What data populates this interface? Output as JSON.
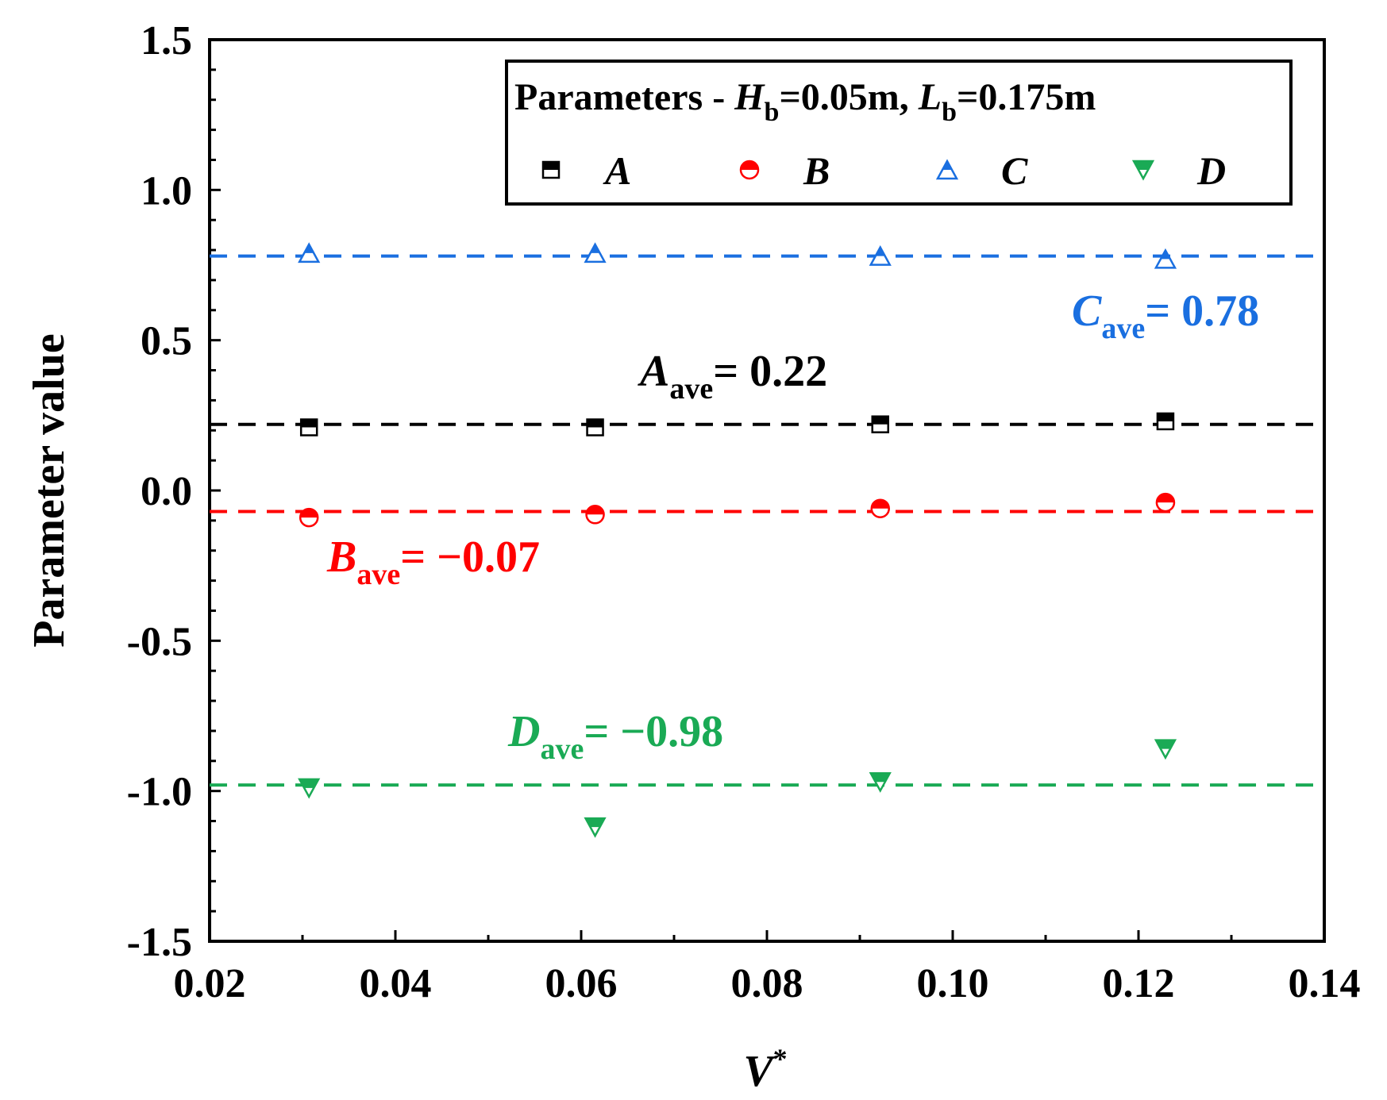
{
  "chart_data": {
    "type": "scatter",
    "xlabel": "V",
    "xlabel_sup": "*",
    "ylabel": "Parameter value",
    "xlim": [
      0.02,
      0.14
    ],
    "ylim": [
      -1.5,
      1.5
    ],
    "x_ticks": [
      "0.02",
      "0.04",
      "0.06",
      "0.08",
      "0.10",
      "0.12",
      "0.14"
    ],
    "y_ticks": [
      "1.5",
      "1.0",
      "0.5",
      "0.0",
      "-0.5",
      "-1.0",
      "-1.5"
    ],
    "x_tick_values": [
      0.02,
      0.04,
      0.06,
      0.08,
      0.1,
      0.12,
      0.14
    ],
    "y_tick_values": [
      1.5,
      1.0,
      0.5,
      0.0,
      -0.5,
      -1.0,
      -1.5
    ],
    "grid": false,
    "legend_position": "top-right",
    "legend_title": {
      "prefix": "Parameters - ",
      "h_sym": "H",
      "h_sub": "b",
      "h_val": "=0.05m, ",
      "l_sym": "L",
      "l_sub": "b",
      "l_val": "=0.175m"
    },
    "x": [
      0.0307,
      0.0615,
      0.0922,
      0.1229
    ],
    "series": [
      {
        "name": "A",
        "color": "#000000",
        "marker": "square-half",
        "values": [
          0.21,
          0.21,
          0.22,
          0.23
        ],
        "average": 0.22
      },
      {
        "name": "B",
        "color": "#ff0000",
        "marker": "circle-half",
        "values": [
          -0.09,
          -0.08,
          -0.06,
          -0.04
        ],
        "average": -0.07
      },
      {
        "name": "C",
        "color": "#1a6fe0",
        "marker": "triangle-up-half",
        "values": [
          0.79,
          0.79,
          0.78,
          0.77
        ],
        "average": 0.78
      },
      {
        "name": "D",
        "color": "#1aaa55",
        "marker": "triangle-down-half",
        "values": [
          -0.99,
          -1.12,
          -0.97,
          -0.86
        ],
        "average": -0.98
      }
    ],
    "annotations": [
      {
        "sym": "A",
        "sub": "ave",
        "text": "= 0.22",
        "color": "#000000"
      },
      {
        "sym": "B",
        "sub": "ave",
        "text": "= −0.07",
        "color": "#ff0000"
      },
      {
        "sym": "C",
        "sub": "ave",
        "text": "= 0.78",
        "color": "#1a6fe0"
      },
      {
        "sym": "D",
        "sub": "ave",
        "text": "= −0.98",
        "color": "#1aaa55"
      }
    ]
  }
}
